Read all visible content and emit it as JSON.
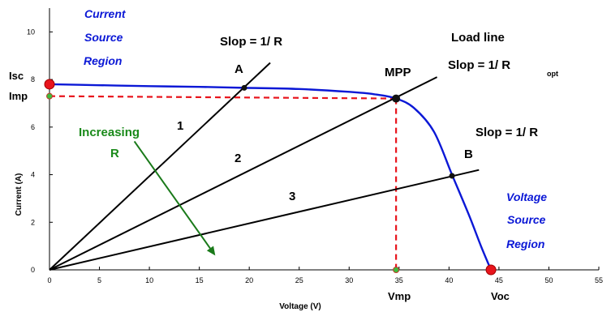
{
  "chart_data": {
    "type": "line",
    "title": "",
    "xlabel": "Voltage (V)",
    "ylabel": "Current (A)",
    "xlim": [
      0,
      55
    ],
    "ylim": [
      0,
      11
    ],
    "grid": false,
    "xticks": [
      0,
      5,
      10,
      15,
      20,
      25,
      30,
      35,
      40,
      45,
      50,
      55
    ],
    "yticks": [
      0,
      2,
      4,
      6,
      8,
      10
    ],
    "series": [
      {
        "color": "#0b18d6",
        "points": [
          [
            0,
            7.8
          ],
          [
            5,
            7.76
          ],
          [
            10,
            7.72
          ],
          [
            15,
            7.69
          ],
          [
            19.5,
            7.65
          ],
          [
            25,
            7.6
          ],
          [
            30,
            7.48
          ],
          [
            32.5,
            7.38
          ],
          [
            34.7,
            7.2
          ],
          [
            36.5,
            6.8
          ],
          [
            38.5,
            5.8
          ],
          [
            40.3,
            4.0
          ],
          [
            42,
            2.3
          ],
          [
            43.2,
            1.0
          ],
          [
            44.2,
            0.0
          ]
        ]
      },
      {
        "color": "#000000",
        "points": [
          [
            0,
            0
          ],
          [
            22.1,
            8.7
          ]
        ]
      },
      {
        "color": "#000000",
        "points": [
          [
            0,
            0
          ],
          [
            38.8,
            8.1
          ]
        ]
      },
      {
        "color": "#000000",
        "points": [
          [
            0,
            0
          ],
          [
            43,
            4.2
          ]
        ]
      }
    ],
    "markers": [
      {
        "x": 0,
        "y": 7.8,
        "kind": "red-circle"
      },
      {
        "x": 44.2,
        "y": 0,
        "kind": "red-circle"
      },
      {
        "x": 19.5,
        "y": 7.65,
        "kind": "black-dot"
      },
      {
        "x": 34.7,
        "y": 7.2,
        "kind": "black-dot"
      },
      {
        "x": 40.3,
        "y": 3.95,
        "kind": "black-dot"
      },
      {
        "x": 0,
        "y": 7.3,
        "kind": "green-dot"
      },
      {
        "x": 34.7,
        "y": 0,
        "kind": "green-dot"
      }
    ],
    "guides": [
      {
        "from": [
          0,
          7.3
        ],
        "to": [
          34.7,
          7.2
        ],
        "color": "#e8141c"
      },
      {
        "from": [
          34.7,
          7.2
        ],
        "to": [
          34.7,
          0
        ],
        "color": "#e8141c"
      }
    ],
    "arrow": {
      "from": [
        8.5,
        5.4
      ],
      "to": [
        16.6,
        0.6
      ],
      "color": "#1a7a1a"
    },
    "annotations": {
      "current_region": [
        "Current",
        "Source",
        "Region"
      ],
      "voltage_region": [
        "Voltage",
        "Source",
        "Region"
      ],
      "slope_a": "Slop = 1/ R",
      "load_line": "Load line",
      "slope_opt": "Slop = 1/ R",
      "opt_subscript": "opt",
      "slope_b": "Slop = 1/ R",
      "point_a": "A",
      "point_b": "B",
      "mpp": "MPP",
      "line_1": "1",
      "line_2": "2",
      "line_3": "3",
      "increasing": "Increasing",
      "increasing_r": "R",
      "isc": "Isc",
      "imp": "Imp",
      "vmp": "Vmp",
      "voc": "Voc"
    },
    "colors": {
      "curve": "#0b18d6",
      "guides": "#e8141c",
      "arrow": "#1a7a1a",
      "load_lines": "#000000"
    }
  }
}
